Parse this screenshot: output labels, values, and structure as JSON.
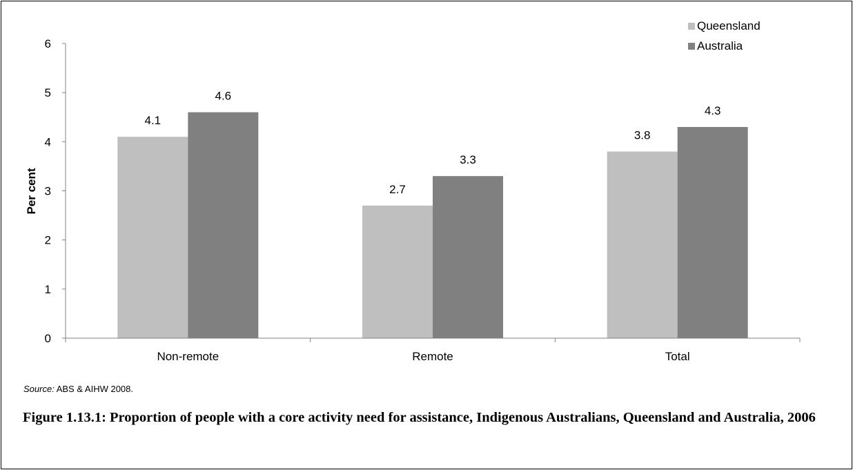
{
  "chart_data": {
    "type": "bar",
    "categories": [
      "Non-remote",
      "Remote",
      "Total"
    ],
    "series": [
      {
        "name": "Queensland",
        "values": [
          4.1,
          2.7,
          3.8
        ],
        "color": "#bfbfbf"
      },
      {
        "name": "Australia",
        "values": [
          4.6,
          3.3,
          4.3
        ],
        "color": "#808080"
      }
    ],
    "data_labels": [
      [
        "4.1",
        "2.7",
        "3.8"
      ],
      [
        "4.6",
        "3.3",
        "4.3"
      ]
    ],
    "ylabel": "Per cent",
    "xlabel": "",
    "ylim": [
      0,
      6
    ],
    "yticks": [
      "0",
      "1",
      "2",
      "3",
      "4",
      "5",
      "6"
    ],
    "grid": false,
    "legend_position": "top-right"
  },
  "source": {
    "label": "Source:",
    "text": "ABS & AIHW 2008."
  },
  "caption": "Figure 1.13.1: Proportion of people with a core activity need for assistance, Indigenous Australians, Queensland and Australia, 2006"
}
